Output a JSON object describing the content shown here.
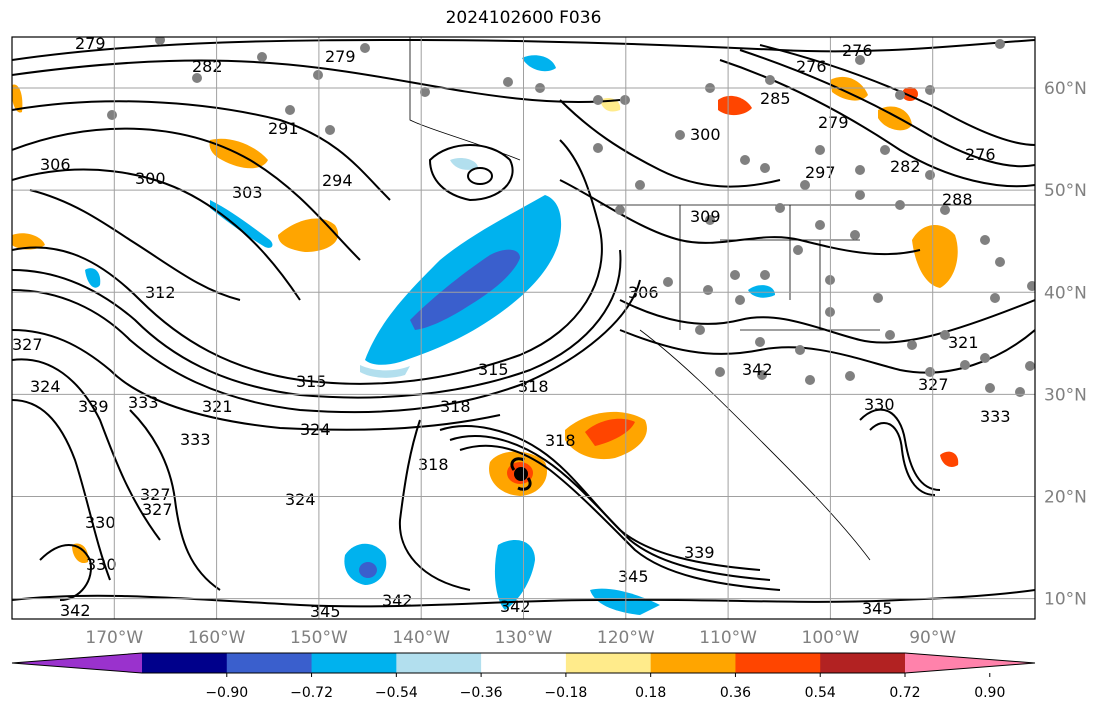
{
  "title": "2024102600 F036",
  "map": {
    "lon_range": [
      -180,
      -80
    ],
    "lat_range": [
      8,
      65
    ],
    "lon_ticks": [
      "170°W",
      "160°W",
      "150°W",
      "140°W",
      "130°W",
      "120°W",
      "110°W",
      "100°W",
      "90°W"
    ],
    "lat_ticks": [
      "60°N",
      "50°N",
      "40°N",
      "30°N",
      "20°N",
      "10°N"
    ],
    "gridlines": true,
    "contour_color": "#000000",
    "contour_labels": [
      "279",
      "282",
      "279",
      "276",
      "276",
      "285",
      "279",
      "291",
      "294",
      "300",
      "303",
      "306",
      "297",
      "276",
      "282",
      "288",
      "300",
      "312",
      "315",
      "318",
      "315",
      "318",
      "324",
      "327",
      "321",
      "324",
      "333",
      "333",
      "327",
      "339",
      "324",
      "318",
      "330",
      "327",
      "330",
      "339",
      "345",
      "342",
      "345",
      "342",
      "342",
      "345",
      "318",
      "306",
      "309",
      "321",
      "327",
      "330",
      "333",
      "342"
    ],
    "features": [
      "coastlines",
      "state-borders",
      "country-borders",
      "gray-station-dots",
      "tropical-cyclone-marker"
    ]
  },
  "colorbar": {
    "colors": [
      "#9a32cd",
      "#00008b",
      "#3a5fcd",
      "#00b2ee",
      "#b2dfee",
      "#ffffff",
      "#ffeb8b",
      "#ffa500",
      "#ff4500",
      "#b22222",
      "#ff82ab"
    ],
    "labels": [
      "−0.90",
      "−0.72",
      "−0.54",
      "−0.36",
      "−0.18",
      "0.18",
      "0.36",
      "0.54",
      "0.72",
      "0.90"
    ],
    "extend": "both"
  }
}
